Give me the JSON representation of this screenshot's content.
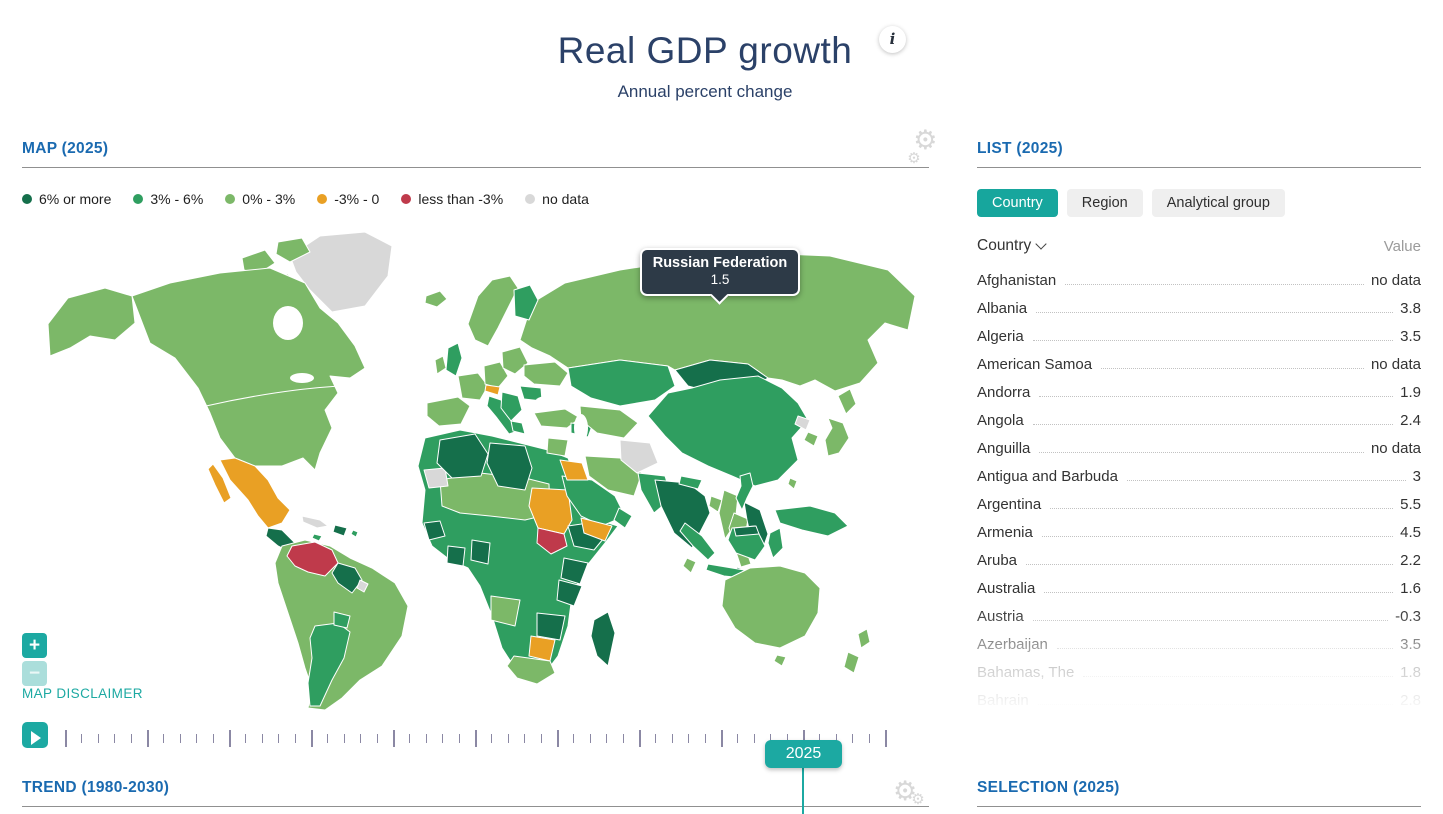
{
  "page": {
    "title": "Real GDP growth",
    "subtitle": "Annual percent change",
    "info_icon": "i"
  },
  "map_section": {
    "title": "MAP (2025)",
    "legend": [
      {
        "label": "6% or more",
        "color": "#156f4b"
      },
      {
        "label": "3% - 6%",
        "color": "#2f9e60"
      },
      {
        "label": "0% - 3%",
        "color": "#7cb868"
      },
      {
        "label": "-3% - 0",
        "color": "#e9a024"
      },
      {
        "label": "less than -3%",
        "color": "#bf3a4b"
      },
      {
        "label": "no data",
        "color": "#d8d8d8"
      }
    ],
    "tooltip": {
      "country": "Russian Federation",
      "value": "1.5"
    },
    "zoom_in_label": "+",
    "zoom_out_label": "−",
    "disclaimer_label": "MAP DISCLAIMER",
    "timeline": {
      "start_year": 1980,
      "end_year": 2030,
      "major_every": 5,
      "selected_year": "2025"
    },
    "accent_teal": "#1ca9a2"
  },
  "list_section": {
    "title": "LIST (2025)",
    "tabs": [
      {
        "label": "Country",
        "active": true
      },
      {
        "label": "Region",
        "active": false
      },
      {
        "label": "Analytical group",
        "active": false
      }
    ],
    "columns": {
      "country": "Country",
      "value": "Value"
    },
    "rows": [
      {
        "country": "Afghanistan",
        "value": "no data"
      },
      {
        "country": "Albania",
        "value": "3.8"
      },
      {
        "country": "Algeria",
        "value": "3.5"
      },
      {
        "country": "American Samoa",
        "value": "no data"
      },
      {
        "country": "Andorra",
        "value": "1.9"
      },
      {
        "country": "Angola",
        "value": "2.4"
      },
      {
        "country": "Anguilla",
        "value": "no data"
      },
      {
        "country": "Antigua and Barbuda",
        "value": "3"
      },
      {
        "country": "Argentina",
        "value": "5.5"
      },
      {
        "country": "Armenia",
        "value": "4.5"
      },
      {
        "country": "Aruba",
        "value": "2.2"
      },
      {
        "country": "Australia",
        "value": "1.6"
      },
      {
        "country": "Austria",
        "value": "-0.3"
      },
      {
        "country": "Azerbaijan",
        "value": "3.5"
      },
      {
        "country": "Bahamas, The",
        "value": "1.8"
      },
      {
        "country": "Bahrain",
        "value": "2.8"
      }
    ]
  },
  "trend_section": {
    "title": "TREND (1980-2030)"
  },
  "selection_section": {
    "title": "SELECTION (2025)"
  }
}
